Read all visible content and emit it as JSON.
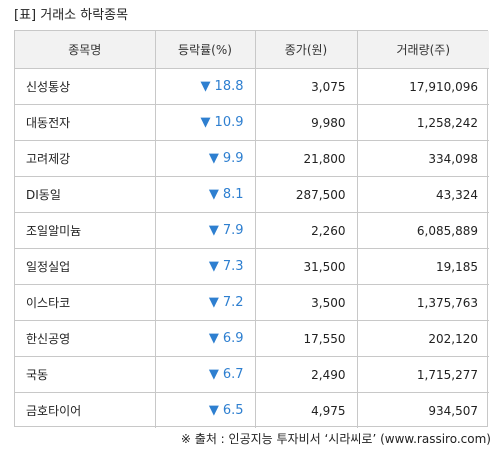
{
  "title": "[표] 거래소 하락종목",
  "headers": {
    "name": "종목명",
    "rate": "등락률(%)",
    "price": "종가(원)",
    "volume": "거래량(주)"
  },
  "down_symbol": "▼",
  "rate_color": "#2e7fd0",
  "rows": [
    {
      "name": "신성통상",
      "rate": "18.8",
      "price": "3,075",
      "volume": "17,910,096"
    },
    {
      "name": "대동전자",
      "rate": "10.9",
      "price": "9,980",
      "volume": "1,258,242"
    },
    {
      "name": "고려제강",
      "rate": "9.9",
      "price": "21,800",
      "volume": "334,098"
    },
    {
      "name": "DI동일",
      "rate": "8.1",
      "price": "287,500",
      "volume": "43,324"
    },
    {
      "name": "조일알미늄",
      "rate": "7.9",
      "price": "2,260",
      "volume": "6,085,889"
    },
    {
      "name": "일정실업",
      "rate": "7.3",
      "price": "31,500",
      "volume": "19,185"
    },
    {
      "name": "이스타코",
      "rate": "7.2",
      "price": "3,500",
      "volume": "1,375,763"
    },
    {
      "name": "한신공영",
      "rate": "6.9",
      "price": "17,550",
      "volume": "202,120"
    },
    {
      "name": "국동",
      "rate": "6.7",
      "price": "2,490",
      "volume": "1,715,277"
    },
    {
      "name": "금호타이어",
      "rate": "6.5",
      "price": "4,975",
      "volume": "934,507"
    }
  ],
  "source": "※ 출처 : 인공지능 투자비서 ‘시라씨로’ (www.rassiro.com)"
}
